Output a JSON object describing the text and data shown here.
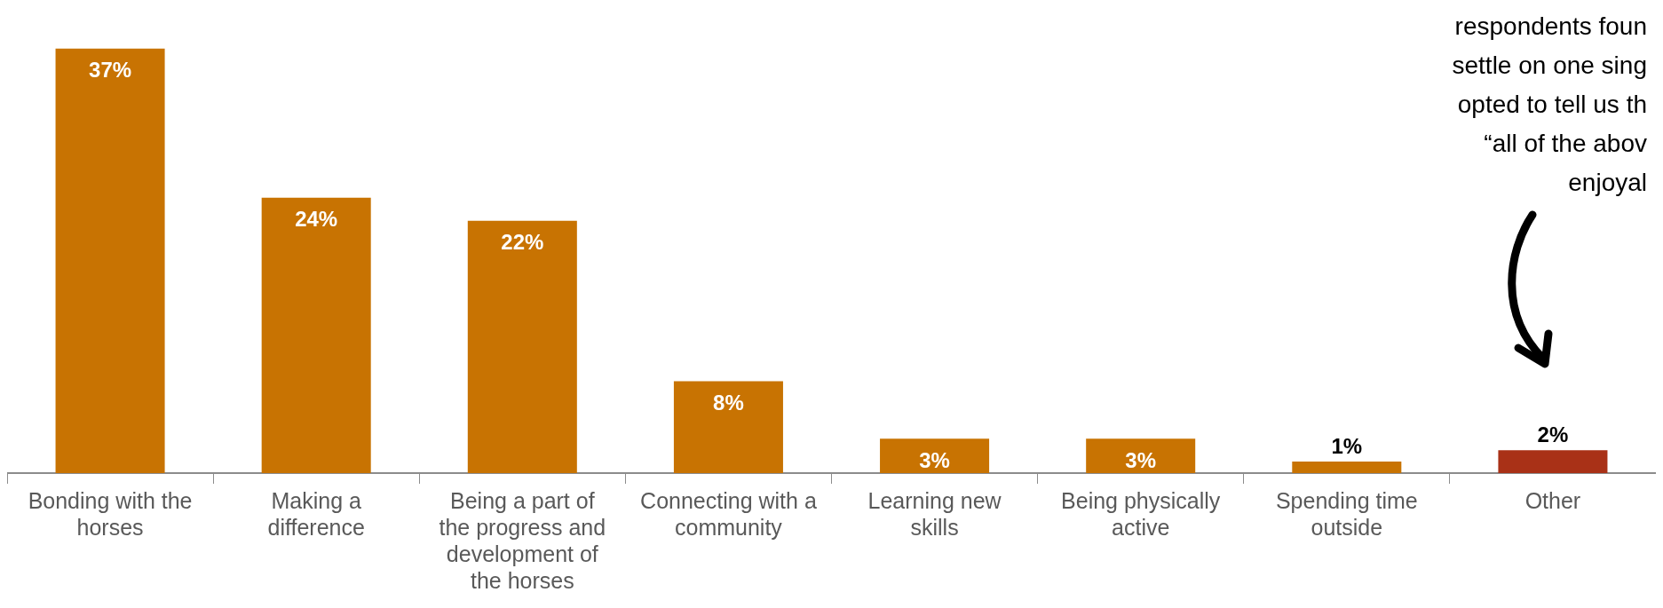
{
  "chart_data": {
    "type": "bar",
    "categories": [
      "Bonding with the horses",
      "Making a difference",
      "Being a part of the progress and development of the horses",
      "Connecting with a community",
      "Learning new skills",
      "Being physically active",
      "Spending time outside",
      "Other"
    ],
    "values": [
      37,
      24,
      22,
      8,
      3,
      3,
      1,
      2
    ],
    "colors": [
      "#c87302",
      "#c87302",
      "#c87302",
      "#c87302",
      "#c87302",
      "#c87302",
      "#c87302",
      "#a93117"
    ],
    "value_labels": [
      "37%",
      "24%",
      "22%",
      "8%",
      "3%",
      "3%",
      "1%",
      "2%"
    ],
    "grid": false,
    "legend": false,
    "annotations": [
      "respondents foun",
      "settle on one sing",
      "opted to tell us th",
      "“all of the abov",
      "enjoyal"
    ]
  }
}
